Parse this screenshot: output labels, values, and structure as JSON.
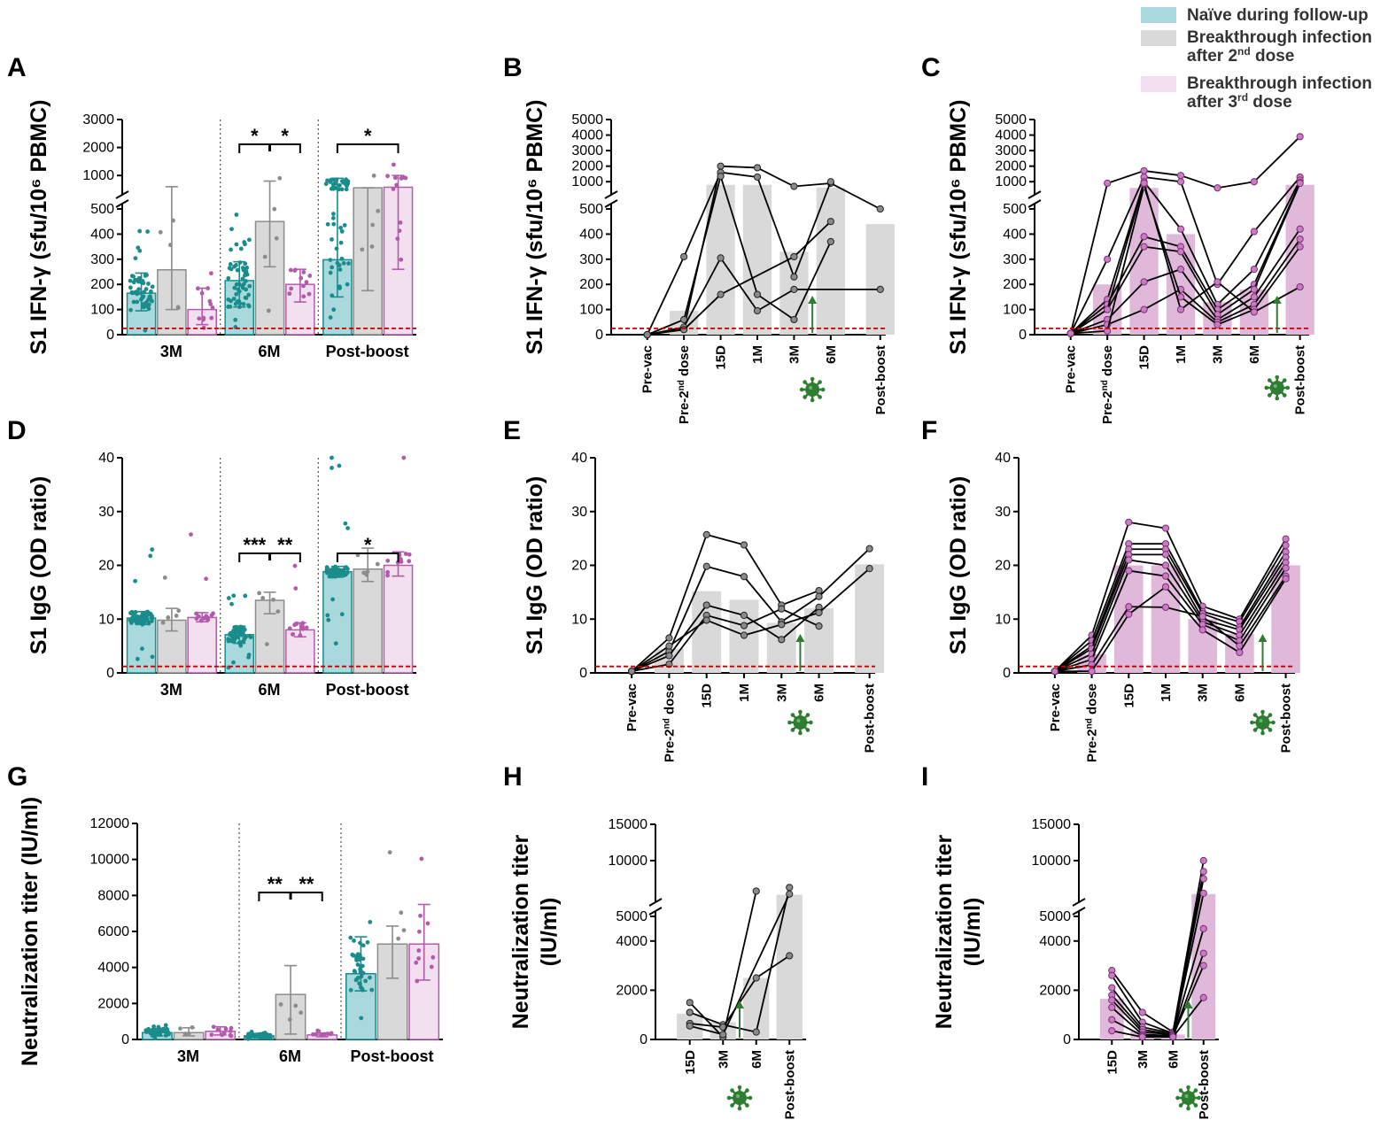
{
  "colors": {
    "teal": "#1a8c8c",
    "teal_fill": "#a9d9dc",
    "gray": "#8c8c8c",
    "gray_fill": "#d9d9d9",
    "pink": "#b35aaa",
    "pink_fill": "#f2dff0",
    "pink_bar": "#e0b8da",
    "lod": "#c00000",
    "virus": "#2e7d32"
  },
  "legend": [
    {
      "label": "Naïve during follow-up",
      "color": "#a9d9dc"
    },
    {
      "label": "Breakthrough infection after 2nd dose",
      "line1": "Breakthrough infection",
      "line2": "after 2",
      "sup": "nd",
      "line2b": " dose",
      "color": "#d9d9d9"
    },
    {
      "label": "Breakthrough infection after 3rd dose",
      "line1": "Breakthrough infection",
      "line2": "after 3",
      "sup": "rd",
      "line2b": " dose",
      "color": "#f2dff0"
    }
  ],
  "chart_data": [
    {
      "panel": "A",
      "type": "bar",
      "title": "",
      "groups": [
        "3M",
        "6M",
        "Post-boost"
      ],
      "ylabel": "S1 IFN-γ (sfu/10⁶ PBMC)",
      "ylim": [
        0,
        3000
      ],
      "axis_break": 500,
      "yticks": [
        "0",
        "100",
        "200",
        "300",
        "400",
        "500",
        "1000",
        "2000",
        "3000"
      ],
      "series": [
        {
          "name": "Naïve during follow-up",
          "values": [
            165,
            215,
            298
          ],
          "sd_low": [
            95,
            110,
            150
          ],
          "sd_high": [
            245,
            290,
            900
          ]
        },
        {
          "name": "Breakthrough infection after 2nd dose",
          "values": [
            258,
            450,
            560
          ],
          "sd_low": [
            100,
            270,
            175
          ],
          "sd_high": [
            600,
            800,
            560
          ]
        },
        {
          "name": "Breakthrough infection after 3rd dose",
          "values": [
            100,
            200,
            580
          ],
          "sd_low": [
            40,
            130,
            260
          ],
          "sd_high": [
            185,
            260,
            1000
          ]
        }
      ],
      "significance": [
        {
          "group": "6M",
          "text": "*",
          "pair": "naive-2nd"
        },
        {
          "group": "6M",
          "text": "*",
          "pair": "2nd-3rd"
        },
        {
          "group": "Post-boost",
          "text": "*",
          "pair": "naive-3rd"
        }
      ],
      "lod": 25
    },
    {
      "panel": "B",
      "type": "line",
      "xlabel": "",
      "ylabel": "S1 IFN-γ (sfu/10⁶ PBMC)",
      "categories": [
        "Pre-vac",
        "Pre-2nd dose",
        "15D",
        "1M",
        "3M",
        "6M",
        "Post-boost"
      ],
      "xlabels": [
        {
          "text": "Pre-vac"
        },
        {
          "text": "Pre-2",
          "sup": "nd",
          "rest": " dose"
        },
        {
          "text": "15D"
        },
        {
          "text": "1M"
        },
        {
          "text": "3M"
        },
        {
          "text": "6M"
        },
        {
          "text": "Post-boost"
        }
      ],
      "ylim": [
        0,
        5000
      ],
      "axis_break": 500,
      "yticks": [
        "0",
        "100",
        "200",
        "300",
        "400",
        "500",
        "1000",
        "2000",
        "3000",
        "4000",
        "5000"
      ],
      "bars": [
        0,
        95,
        800,
        800,
        330,
        620,
        440
      ],
      "lod": 25,
      "infection_after": "3M",
      "series": [
        {
          "values": [
            0,
            25,
            2000,
            1900,
            700,
            900,
            500
          ]
        },
        {
          "values": [
            0,
            310,
            1600,
            1300,
            230,
            1000,
            null
          ]
        },
        {
          "values": [
            0,
            60,
            1350,
            160,
            60,
            370,
            null
          ]
        },
        {
          "values": [
            0,
            30,
            305,
            95,
            180,
            null,
            180
          ]
        },
        {
          "values": [
            0,
            20,
            160,
            null,
            310,
            450,
            null
          ]
        }
      ]
    },
    {
      "panel": "C",
      "type": "line",
      "ylabel": "S1 IFN-γ (sfu/10⁶ PBMC)",
      "categories": [
        "Pre-vac",
        "Pre-2nd dose",
        "15D",
        "1M",
        "3M",
        "6M",
        "Post-boost"
      ],
      "xlabels": [
        {
          "text": "Pre-vac"
        },
        {
          "text": "Pre-2",
          "sup": "nd",
          "rest": " dose"
        },
        {
          "text": "15D"
        },
        {
          "text": "1M"
        },
        {
          "text": "3M"
        },
        {
          "text": "6M"
        },
        {
          "text": "Post-boost"
        }
      ],
      "ylim": [
        0,
        5000
      ],
      "axis_break": 500,
      "yticks": [
        "0",
        "100",
        "200",
        "300",
        "400",
        "500",
        "1000",
        "2000",
        "3000",
        "4000",
        "5000"
      ],
      "bars": [
        0,
        200,
        600,
        400,
        130,
        180,
        800
      ],
      "lod": 25,
      "infection_after": "6M",
      "series": [
        {
          "values": [
            5,
            900,
            1700,
            1400,
            600,
            1000,
            3900
          ]
        },
        {
          "values": [
            5,
            300,
            1300,
            1000,
            200,
            410,
            1300
          ]
        },
        {
          "values": [
            5,
            140,
            1000,
            420,
            120,
            260,
            1100
          ]
        },
        {
          "values": [
            5,
            120,
            390,
            350,
            100,
            200,
            950
          ]
        },
        {
          "values": [
            5,
            100,
            350,
            330,
            80,
            180,
            900
          ]
        },
        {
          "values": [
            5,
            60,
            210,
            260,
            60,
            150,
            420
          ]
        },
        {
          "values": [
            5,
            40,
            100,
            180,
            50,
            120,
            380
          ]
        },
        {
          "values": [
            5,
            15,
            700,
            150,
            40,
            100,
            350
          ]
        },
        {
          "values": [
            5,
            100,
            900,
            100,
            210,
            90,
            190
          ]
        }
      ]
    },
    {
      "panel": "D",
      "type": "bar",
      "groups": [
        "3M",
        "6M",
        "Post-boost"
      ],
      "ylabel": "S1 IgG (OD ratio)",
      "ylim": [
        0,
        40
      ],
      "yticks": [
        "0",
        "10",
        "20",
        "30",
        "40"
      ],
      "series": [
        {
          "name": "Naïve during follow-up",
          "values": [
            10.2,
            7.1,
            18.8
          ],
          "sd_low": [
            9.0,
            5.5,
            17.8
          ],
          "sd_high": [
            11.4,
            8.7,
            19.8
          ]
        },
        {
          "name": "Breakthrough infection after 2nd dose",
          "values": [
            9.8,
            13.5,
            19.3
          ],
          "sd_low": [
            7.8,
            11.0,
            17.0
          ],
          "sd_high": [
            12.0,
            15.0,
            23.2
          ]
        },
        {
          "name": "Breakthrough infection after 3rd dose",
          "values": [
            10.3,
            8.0,
            20.0
          ],
          "sd_low": [
            9.5,
            6.7,
            18.0
          ],
          "sd_high": [
            11.2,
            9.3,
            22.5
          ]
        }
      ],
      "significance": [
        {
          "group": "6M",
          "text": "***",
          "pair": "naive-2nd"
        },
        {
          "group": "6M",
          "text": "**",
          "pair": "2nd-3rd"
        },
        {
          "group": "Post-boost",
          "text": "*",
          "pair": "naive-3rd"
        }
      ],
      "lod": 1.2
    },
    {
      "panel": "E",
      "type": "line",
      "ylabel": "S1 IgG (OD ratio)",
      "categories": [
        "Pre-vac",
        "Pre-2nd dose",
        "15D",
        "1M",
        "3M",
        "6M",
        "Post-boost"
      ],
      "xlabels": [
        {
          "text": "Pre-vac"
        },
        {
          "text": "Pre-2",
          "sup": "nd",
          "rest": " dose"
        },
        {
          "text": "15D"
        },
        {
          "text": "1M"
        },
        {
          "text": "3M"
        },
        {
          "text": "6M"
        },
        {
          "text": "Post-boost"
        }
      ],
      "ylim": [
        0,
        40
      ],
      "yticks": [
        "0",
        "10",
        "20",
        "30",
        "40"
      ],
      "bars": [
        0,
        4.5,
        15.2,
        13.6,
        9.3,
        12.0,
        20.2
      ],
      "lod": 1.2,
      "infection_after": "3M",
      "series": [
        {
          "values": [
            0.3,
            6.5,
            25.7,
            23.8,
            12.6,
            15.3,
            null
          ]
        },
        {
          "values": [
            0.3,
            4.0,
            19.8,
            17.9,
            9.5,
            14.2,
            23.1
          ]
        },
        {
          "values": [
            0.3,
            3.2,
            12.6,
            10.7,
            6.2,
            12.2,
            null
          ]
        },
        {
          "values": [
            0.3,
            1.6,
            10.7,
            8.8,
            11.9,
            8.7,
            null
          ]
        },
        {
          "values": [
            0.3,
            5.0,
            9.8,
            7.0,
            9.0,
            11.2,
            19.4
          ]
        }
      ]
    },
    {
      "panel": "F",
      "type": "line",
      "ylabel": "S1 IgG (OD ratio)",
      "categories": [
        "Pre-vac",
        "Pre-2nd dose",
        "15D",
        "1M",
        "3M",
        "6M",
        "Post-boost"
      ],
      "xlabels": [
        {
          "text": "Pre-vac"
        },
        {
          "text": "Pre-2",
          "sup": "nd",
          "rest": " dose"
        },
        {
          "text": "15D"
        },
        {
          "text": "1M"
        },
        {
          "text": "3M"
        },
        {
          "text": "6M"
        },
        {
          "text": "Post-boost"
        }
      ],
      "ylim": [
        0,
        40
      ],
      "yticks": [
        "0",
        "10",
        "20",
        "30",
        "40"
      ],
      "bars": [
        0,
        3.5,
        20.0,
        20.0,
        10.0,
        7.3,
        20.0
      ],
      "lod": 1.2,
      "infection_after": "6M",
      "series": [
        {
          "values": [
            0.3,
            7.0,
            28.0,
            26.9,
            12.4,
            10.0,
            24.9
          ]
        },
        {
          "values": [
            0.3,
            6.0,
            24.0,
            24.0,
            11.4,
            9.5,
            23.7
          ]
        },
        {
          "values": [
            0.3,
            5.0,
            23.0,
            23.0,
            11.0,
            8.5,
            22.5
          ]
        },
        {
          "values": [
            0.3,
            4.5,
            22.0,
            22.0,
            10.0,
            8.0,
            21.5
          ]
        },
        {
          "values": [
            0.3,
            3.5,
            21.0,
            20.0,
            9.5,
            7.0,
            20.5
          ]
        },
        {
          "values": [
            0.3,
            2.5,
            19.0,
            18.0,
            9.0,
            6.0,
            19.5
          ]
        },
        {
          "values": [
            0.3,
            1.5,
            12.3,
            12.2,
            10.5,
            5.0,
            18.0
          ]
        },
        {
          "values": [
            0.3,
            0.3,
            10.9,
            16.0,
            8.0,
            3.8,
            17.5
          ]
        }
      ]
    },
    {
      "panel": "G",
      "type": "bar",
      "groups": [
        "3M",
        "6M",
        "Post-boost"
      ],
      "ylabel": "Neutralization titer (IU/ml)",
      "ylim": [
        0,
        12000
      ],
      "yticks": [
        "0",
        "2000",
        "4000",
        "6000",
        "8000",
        "10000",
        "12000"
      ],
      "series": [
        {
          "name": "Naïve during follow-up",
          "values": [
            380,
            200,
            3650
          ],
          "sd_low": [
            200,
            100,
            2700
          ],
          "sd_high": [
            600,
            300,
            5700
          ]
        },
        {
          "name": "Breakthrough infection after 2nd dose",
          "values": [
            380,
            2500,
            5300
          ],
          "sd_low": [
            200,
            300,
            3400
          ],
          "sd_high": [
            650,
            4100,
            6300
          ]
        },
        {
          "name": "Breakthrough infection after 3rd dose",
          "values": [
            450,
            250,
            5300
          ],
          "sd_low": [
            250,
            150,
            3300
          ],
          "sd_high": [
            700,
            350,
            7500
          ]
        }
      ],
      "significance": [
        {
          "group": "6M",
          "text": "**",
          "pair": "naive-2nd"
        },
        {
          "group": "6M",
          "text": "**",
          "pair": "2nd-3rd"
        }
      ]
    },
    {
      "panel": "H",
      "type": "line",
      "ylabel": "Neutralization titer (IU/ml)",
      "categories": [
        "15D",
        "3M",
        "6M",
        "Post-boost"
      ],
      "xlabels": [
        {
          "text": "15D"
        },
        {
          "text": "3M"
        },
        {
          "text": "6M"
        },
        {
          "text": "Post-boost"
        }
      ],
      "ylim": [
        0,
        15000
      ],
      "axis_break": 5000,
      "yticks": [
        "0",
        "2000",
        "4000",
        "5000",
        "10000",
        "15000"
      ],
      "bars": [
        1050,
        700,
        2500,
        5300
      ],
      "infection_after": "3M",
      "series": [
        {
          "values": [
            1500,
            100,
            5800,
            null
          ]
        },
        {
          "values": [
            1100,
            600,
            300,
            6300
          ]
        },
        {
          "values": [
            650,
            500,
            2500,
            3400
          ]
        },
        {
          "values": [
            550,
            200,
            null,
            5400
          ]
        }
      ]
    },
    {
      "panel": "I",
      "type": "line",
      "ylabel": "Neutralization titer (IU/ml)",
      "categories": [
        "15D",
        "3M",
        "6M",
        "Post-boost"
      ],
      "xlabels": [
        {
          "text": "15D"
        },
        {
          "text": "3M"
        },
        {
          "text": "6M"
        },
        {
          "text": "Post-boost"
        }
      ],
      "ylim": [
        0,
        15000
      ],
      "axis_break": 5000,
      "yticks": [
        "0",
        "2000",
        "4000",
        "5000",
        "10000",
        "15000"
      ],
      "bars": [
        1650,
        350,
        200,
        5400
      ],
      "infection_after": "6M",
      "series": [
        {
          "values": [
            2800,
            1100,
            300,
            10000
          ]
        },
        {
          "values": [
            2600,
            700,
            250,
            8500
          ]
        },
        {
          "values": [
            2100,
            500,
            250,
            7500
          ]
        },
        {
          "values": [
            1800,
            400,
            200,
            5500
          ]
        },
        {
          "values": [
            1600,
            300,
            200,
            4500
          ]
        },
        {
          "values": [
            1300,
            200,
            150,
            3500
          ]
        },
        {
          "values": [
            800,
            150,
            150,
            3000
          ]
        },
        {
          "values": [
            350,
            100,
            100,
            1700
          ]
        }
      ]
    }
  ]
}
